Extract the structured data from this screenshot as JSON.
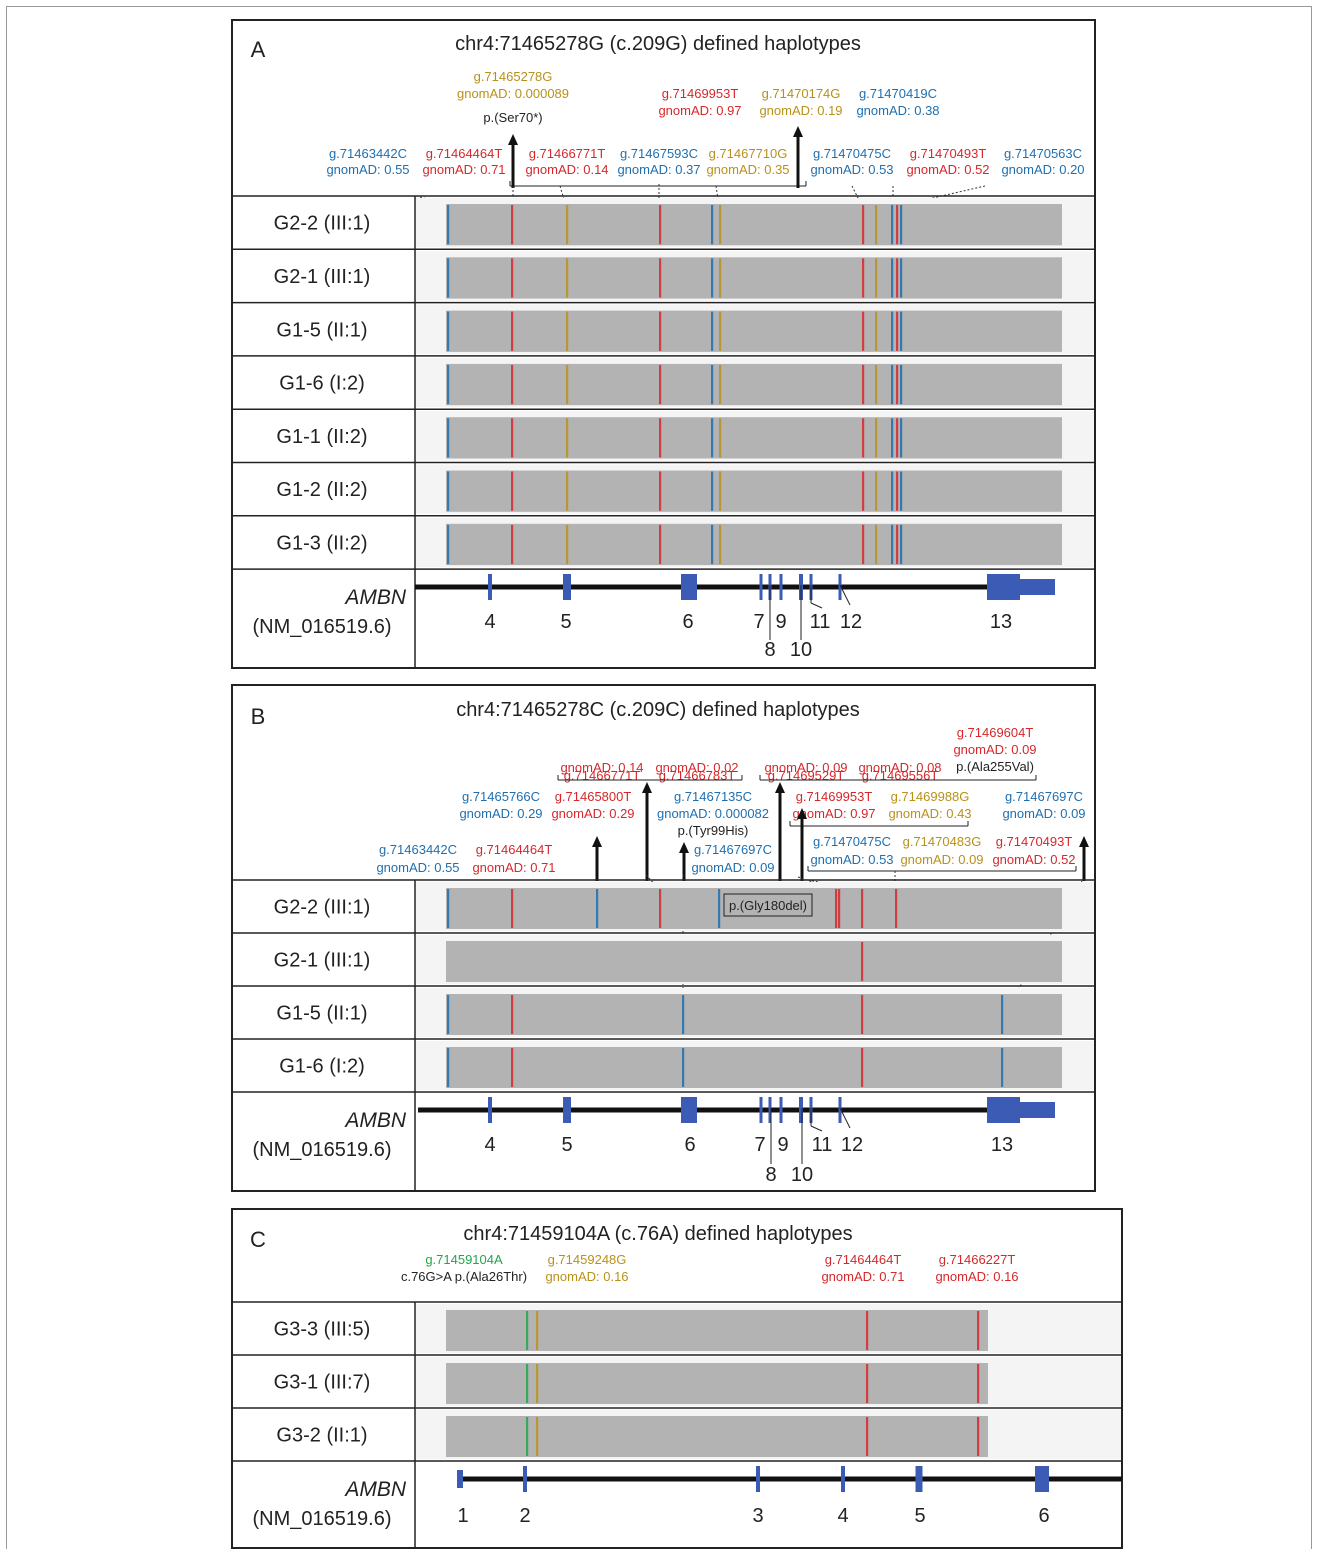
{
  "colors": {
    "blue": "#1f6fb0",
    "red": "#d6282b",
    "gold": "#b8911a",
    "green": "#22a64a",
    "black": "#222222",
    "exon": "#3b5bb5",
    "read_gray": "#b3b3b3"
  },
  "panels": [
    {
      "letter": "A",
      "title": "chr4:71465278G (c.209G) defined haplotypes",
      "top_annotations": [
        {
          "lines": [
            "g.71465278G",
            "gnomAD: 0.000089"
          ],
          "color": "gold",
          "extra": "p.(Ser70*)"
        },
        {
          "lines": [
            "g.71469953T",
            "gnomAD: 0.97"
          ],
          "color": "red"
        },
        {
          "lines": [
            "g.71470174G",
            "gnomAD: 0.19"
          ],
          "color": "gold"
        },
        {
          "lines": [
            "g.71470419C",
            "gnomAD: 0.38"
          ],
          "color": "blue"
        },
        {
          "lines": [
            "g.71463442C",
            "gnomAD: 0.55"
          ],
          "color": "blue"
        },
        {
          "lines": [
            "g.71464464T",
            "gnomAD: 0.71"
          ],
          "color": "red"
        },
        {
          "lines": [
            "g.71466771T",
            "gnomAD: 0.14"
          ],
          "color": "red"
        },
        {
          "lines": [
            "g.71467593C",
            "gnomAD: 0.37"
          ],
          "color": "blue"
        },
        {
          "lines": [
            "g.71467710G",
            "gnomAD: 0.35"
          ],
          "color": "gold"
        },
        {
          "lines": [
            "g.71470475C",
            "gnomAD: 0.53"
          ],
          "color": "blue"
        },
        {
          "lines": [
            "g.71470493T",
            "gnomAD: 0.52"
          ],
          "color": "red"
        },
        {
          "lines": [
            "g.71470563C",
            "gnomAD: 0.20"
          ],
          "color": "blue"
        }
      ],
      "samples": [
        "G2-2 (III:1)",
        "G2-1 (III:1)",
        "G1-5 (II:1)",
        "G1-6 (I:2)",
        "G1-1 (II:2)",
        "G1-2 (II:2)",
        "G1-3 (II:2)"
      ],
      "gene": {
        "name": "AMBN",
        "transcript": "(NM_016519.6)"
      },
      "exons": [
        "4",
        "5",
        "6",
        "7",
        "8",
        "9",
        "10",
        "11",
        "12",
        "13"
      ]
    },
    {
      "letter": "B",
      "title": "chr4:71465278C (c.209C) defined haplotypes",
      "top_annotations": [
        {
          "lines": [
            "g.71469604T",
            "gnomAD: 0.09"
          ],
          "color": "red",
          "extra": "p.(Ala255Val)"
        },
        {
          "lines": [
            "g.71466771T",
            "gnomAD: 0.14"
          ],
          "color": "red"
        },
        {
          "lines": [
            "g.71466783T",
            "gnomAD: 0.02"
          ],
          "color": "red"
        },
        {
          "lines": [
            "g.71469529T",
            "gnomAD: 0.09"
          ],
          "color": "red"
        },
        {
          "lines": [
            "g.71469556T",
            "gnomAD: 0.08"
          ],
          "color": "red"
        },
        {
          "lines": [
            "g.71465766C",
            "gnomAD: 0.29"
          ],
          "color": "blue"
        },
        {
          "lines": [
            "g.71465800T",
            "gnomAD: 0.29"
          ],
          "color": "red"
        },
        {
          "lines": [
            "g.71467135C",
            "gnomAD: 0.000082"
          ],
          "color": "blue",
          "extra": "p.(Tyr99His)"
        },
        {
          "lines": [
            "g.71469953T",
            "gnomAD: 0.97"
          ],
          "color": "red"
        },
        {
          "lines": [
            "g.71469988G",
            "gnomAD: 0.43"
          ],
          "color": "gold"
        },
        {
          "lines": [
            "g.71467697C",
            "gnomAD: 0.09"
          ],
          "color": "blue"
        },
        {
          "lines": [
            "g.71463442C",
            "gnomAD: 0.55"
          ],
          "color": "blue"
        },
        {
          "lines": [
            "g.71464464T",
            "gnomAD: 0.71"
          ],
          "color": "red"
        },
        {
          "lines": [
            "g.71467697C",
            "gnomAD: 0.09"
          ],
          "color": "blue"
        },
        {
          "lines": [
            "g.71470475C",
            "gnomAD: 0.53"
          ],
          "color": "blue"
        },
        {
          "lines": [
            "g.71470483G",
            "gnomAD: 0.09"
          ],
          "color": "gold"
        },
        {
          "lines": [
            "g.71470493T",
            "gnomAD: 0.52"
          ],
          "color": "red"
        }
      ],
      "inline_label": "p.(Gly180del)",
      "samples": [
        "G2-2 (III:1)",
        "G2-1 (III:1)",
        "G1-5 (II:1)",
        "G1-6 (I:2)"
      ],
      "gene": {
        "name": "AMBN",
        "transcript": "(NM_016519.6)"
      },
      "exons": [
        "4",
        "5",
        "6",
        "7",
        "8",
        "9",
        "10",
        "11",
        "12",
        "13"
      ]
    },
    {
      "letter": "C",
      "title": "chr4:71459104A (c.76A) defined haplotypes",
      "top_annotations": [
        {
          "lines": [
            "g.71459104A"
          ],
          "color": "green",
          "extra": "c.76G>A p.(Ala26Thr)"
        },
        {
          "lines": [
            "g.71459248G",
            "gnomAD: 0.16"
          ],
          "color": "gold"
        },
        {
          "lines": [
            "g.71464464T",
            "gnomAD: 0.71"
          ],
          "color": "red"
        },
        {
          "lines": [
            "g.71466227T",
            "gnomAD: 0.16"
          ],
          "color": "red"
        }
      ],
      "samples": [
        "G3-3 (III:5)",
        "G3-1 (III:7)",
        "G3-2 (II:1)"
      ],
      "gene": {
        "name": "AMBN",
        "transcript": "(NM_016519.6)"
      },
      "exons": [
        "1",
        "2",
        "3",
        "4",
        "5",
        "6"
      ]
    }
  ]
}
